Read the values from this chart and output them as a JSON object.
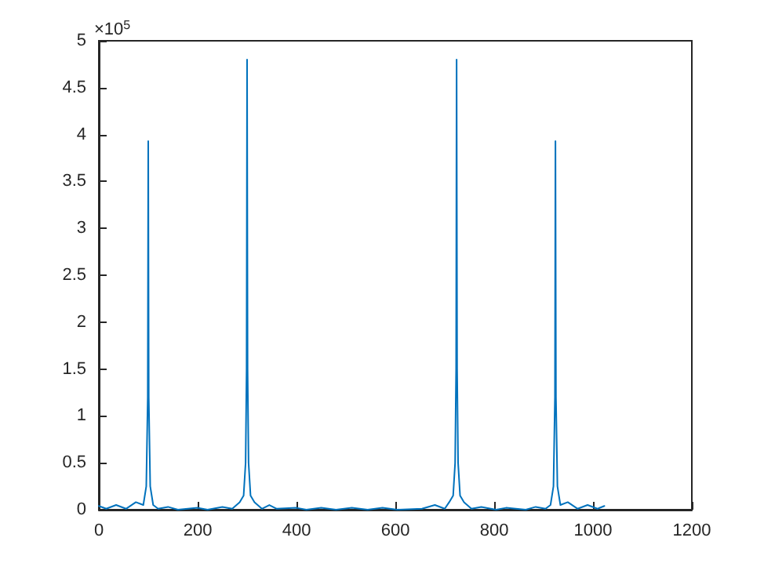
{
  "chart_data": {
    "type": "line",
    "x": [
      0,
      15,
      35,
      55,
      75,
      90,
      96,
      99,
      100,
      101,
      104,
      110,
      120,
      140,
      160,
      200,
      220,
      250,
      270,
      285,
      293,
      297,
      299,
      300,
      301,
      303,
      307,
      315,
      330,
      345,
      360,
      400,
      420,
      450,
      480,
      512,
      544,
      574,
      604,
      654,
      680,
      700,
      709,
      717,
      721,
      723,
      724,
      725,
      727,
      731,
      739,
      754,
      774,
      804,
      824,
      864,
      884,
      904,
      914,
      920,
      923,
      924,
      925,
      928,
      934,
      949,
      969,
      989,
      1009,
      1023
    ],
    "series": [
      {
        "color": "#0072bd",
        "values": [
          0.04,
          0.01,
          0.05,
          0.01,
          0.08,
          0.05,
          0.25,
          1.2,
          3.93,
          1.2,
          0.25,
          0.05,
          0.01,
          0.03,
          0,
          0.02,
          0,
          0.03,
          0.01,
          0.08,
          0.15,
          0.5,
          1.5,
          4.8,
          1.5,
          0.5,
          0.15,
          0.08,
          0.01,
          0.05,
          0.01,
          0.02,
          0,
          0.02,
          0,
          0.02,
          0,
          0.02,
          0,
          0.01,
          0.05,
          0.01,
          0.08,
          0.15,
          0.5,
          1.5,
          4.8,
          1.5,
          0.5,
          0.15,
          0.08,
          0.01,
          0.03,
          0,
          0.02,
          0,
          0.03,
          0.01,
          0.05,
          0.25,
          1.2,
          3.93,
          1.2,
          0.25,
          0.05,
          0.08,
          0.01,
          0.05,
          0.01,
          0.04
        ]
      }
    ],
    "xlim": [
      0,
      1200
    ],
    "xticks": [
      0,
      200,
      400,
      600,
      800,
      1000,
      1200
    ],
    "ylim": [
      0,
      5
    ],
    "yticks": [
      0,
      0.5,
      1,
      1.5,
      2,
      2.5,
      3,
      3.5,
      4,
      4.5,
      5
    ],
    "annotations": [
      "×10$^{5}$"
    ],
    "marker": "none",
    "line_style": "solid"
  }
}
